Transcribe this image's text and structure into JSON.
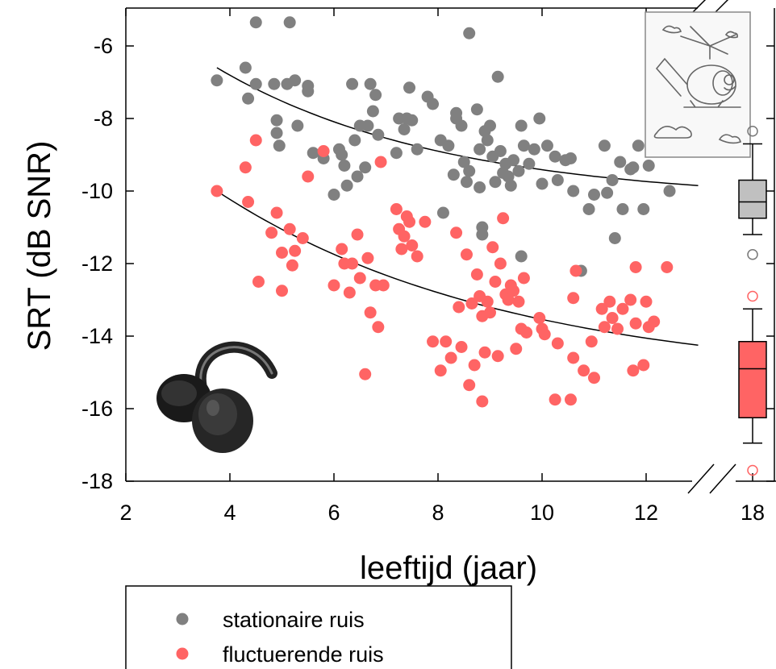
{
  "colors": {
    "stationary": "#808080",
    "fluctuating": "#ff6464",
    "box_stationary": "#c0c0c0",
    "box_fluctuating": "#ff6464"
  },
  "icons": [
    "helicopter-drawing-icon",
    "earmuffs-headphones-icon"
  ],
  "chart_data": {
    "type": "scatter",
    "title": "",
    "xlabel": "leeftijd (jaar)",
    "ylabel": "SRT (dB SNR)",
    "xlim": [
      2,
      13
    ],
    "ylim": [
      -18,
      -5
    ],
    "x_ticks": [
      "2",
      "4",
      "6",
      "8",
      "10",
      "12"
    ],
    "x_break_tick": "18",
    "y_ticks": [
      "-6",
      "-8",
      "-10",
      "-12",
      "-14",
      "-16",
      "-18"
    ],
    "legend": {
      "position": "bottom-left"
    },
    "series": [
      {
        "name": "stationaire ruis",
        "fit": {
          "x": [
            3.75,
            13.0
          ],
          "y": [
            -6.6,
            -9.85
          ],
          "decay": 0.23
        },
        "points": [
          [
            3.75,
            -6.95
          ],
          [
            4.3,
            -6.6
          ],
          [
            4.35,
            -7.45
          ],
          [
            4.5,
            -7.05
          ],
          [
            4.5,
            -5.35
          ],
          [
            4.85,
            -7.05
          ],
          [
            4.9,
            -8.05
          ],
          [
            4.9,
            -8.4
          ],
          [
            4.95,
            -8.75
          ],
          [
            5.1,
            -7.05
          ],
          [
            5.15,
            -5.35
          ],
          [
            5.25,
            -6.95
          ],
          [
            5.3,
            -8.2
          ],
          [
            5.5,
            -7.1
          ],
          [
            5.5,
            -7.25
          ],
          [
            5.6,
            -8.95
          ],
          [
            5.8,
            -9.1
          ],
          [
            6.0,
            -10.1
          ],
          [
            6.1,
            -8.85
          ],
          [
            6.15,
            -9.0
          ],
          [
            6.2,
            -9.3
          ],
          [
            6.25,
            -9.85
          ],
          [
            6.35,
            -7.05
          ],
          [
            6.4,
            -8.6
          ],
          [
            6.45,
            -9.6
          ],
          [
            6.5,
            -8.2
          ],
          [
            6.6,
            -9.35
          ],
          [
            6.65,
            -8.2
          ],
          [
            6.7,
            -7.05
          ],
          [
            6.75,
            -7.8
          ],
          [
            6.8,
            -7.35
          ],
          [
            6.85,
            -8.45
          ],
          [
            7.2,
            -8.95
          ],
          [
            7.25,
            -8.0
          ],
          [
            7.35,
            -8.3
          ],
          [
            7.4,
            -8.0
          ],
          [
            7.45,
            -7.15
          ],
          [
            7.5,
            -8.05
          ],
          [
            7.6,
            -8.85
          ],
          [
            7.8,
            -7.4
          ],
          [
            7.9,
            -7.6
          ],
          [
            8.05,
            -8.6
          ],
          [
            8.1,
            -10.6
          ],
          [
            8.2,
            -8.75
          ],
          [
            8.3,
            -9.55
          ],
          [
            8.35,
            -7.85
          ],
          [
            8.35,
            -8.0
          ],
          [
            8.45,
            -8.2
          ],
          [
            8.5,
            -9.2
          ],
          [
            8.55,
            -9.75
          ],
          [
            8.6,
            -5.65
          ],
          [
            8.6,
            -9.45
          ],
          [
            8.75,
            -7.75
          ],
          [
            8.8,
            -8.85
          ],
          [
            8.8,
            -9.9
          ],
          [
            8.85,
            -11.0
          ],
          [
            8.85,
            -11.2
          ],
          [
            8.9,
            -8.35
          ],
          [
            8.95,
            -8.6
          ],
          [
            9.0,
            -8.2
          ],
          [
            9.05,
            -9.05
          ],
          [
            9.1,
            -9.75
          ],
          [
            9.15,
            -6.85
          ],
          [
            9.2,
            -8.9
          ],
          [
            9.25,
            -9.5
          ],
          [
            9.3,
            -9.25
          ],
          [
            9.35,
            -9.6
          ],
          [
            9.4,
            -9.85
          ],
          [
            9.45,
            -9.15
          ],
          [
            9.55,
            -9.45
          ],
          [
            9.6,
            -8.2
          ],
          [
            9.6,
            -11.8
          ],
          [
            9.65,
            -8.75
          ],
          [
            9.75,
            -9.25
          ],
          [
            9.85,
            -8.85
          ],
          [
            9.95,
            -8.0
          ],
          [
            10.0,
            -9.8
          ],
          [
            10.1,
            -8.75
          ],
          [
            10.25,
            -9.05
          ],
          [
            10.3,
            -9.7
          ],
          [
            10.45,
            -9.15
          ],
          [
            10.55,
            -9.1
          ],
          [
            10.6,
            -10.0
          ],
          [
            10.75,
            -12.2
          ],
          [
            10.9,
            -10.5
          ],
          [
            11.0,
            -10.1
          ],
          [
            11.2,
            -8.75
          ],
          [
            11.25,
            -10.05
          ],
          [
            11.35,
            -9.7
          ],
          [
            11.4,
            -11.3
          ],
          [
            11.5,
            -9.2
          ],
          [
            11.55,
            -10.5
          ],
          [
            11.7,
            -9.4
          ],
          [
            11.75,
            -9.35
          ],
          [
            11.85,
            -8.75
          ],
          [
            11.95,
            -10.5
          ],
          [
            12.05,
            -9.3
          ],
          [
            12.1,
            -8.7
          ],
          [
            12.45,
            -10.0
          ]
        ],
        "box": {
          "whisker_low": -11.2,
          "q1": -10.75,
          "median": -10.3,
          "q3": -9.7,
          "whisker_high": -8.7,
          "outliers": [
            -8.35,
            -11.75
          ]
        }
      },
      {
        "name": "fluctuerende ruis",
        "fit": {
          "x": [
            3.75,
            13.0
          ],
          "y": [
            -10.0,
            -14.25
          ],
          "decay": 0.18
        },
        "points": [
          [
            3.75,
            -10.0
          ],
          [
            4.3,
            -9.35
          ],
          [
            4.35,
            -10.3
          ],
          [
            4.5,
            -8.6
          ],
          [
            4.55,
            -12.5
          ],
          [
            4.8,
            -11.15
          ],
          [
            4.9,
            -10.6
          ],
          [
            5.0,
            -11.7
          ],
          [
            5.0,
            -12.75
          ],
          [
            5.15,
            -11.05
          ],
          [
            5.2,
            -12.05
          ],
          [
            5.25,
            -11.65
          ],
          [
            5.4,
            -11.3
          ],
          [
            5.5,
            -9.6
          ],
          [
            5.8,
            -8.9
          ],
          [
            6.0,
            -12.6
          ],
          [
            6.15,
            -11.6
          ],
          [
            6.2,
            -12.0
          ],
          [
            6.3,
            -12.8
          ],
          [
            6.35,
            -12.0
          ],
          [
            6.45,
            -11.2
          ],
          [
            6.5,
            -12.4
          ],
          [
            6.6,
            -15.05
          ],
          [
            6.65,
            -11.85
          ],
          [
            6.7,
            -13.35
          ],
          [
            6.8,
            -12.6
          ],
          [
            6.85,
            -13.75
          ],
          [
            6.9,
            -9.2
          ],
          [
            6.95,
            -12.6
          ],
          [
            7.2,
            -10.5
          ],
          [
            7.25,
            -11.05
          ],
          [
            7.3,
            -11.6
          ],
          [
            7.35,
            -11.25
          ],
          [
            7.4,
            -10.7
          ],
          [
            7.45,
            -10.85
          ],
          [
            7.5,
            -11.5
          ],
          [
            7.6,
            -11.8
          ],
          [
            7.75,
            -10.85
          ],
          [
            7.9,
            -14.15
          ],
          [
            8.05,
            -14.95
          ],
          [
            8.15,
            -14.15
          ],
          [
            8.25,
            -14.6
          ],
          [
            8.35,
            -11.15
          ],
          [
            8.4,
            -13.2
          ],
          [
            8.45,
            -14.3
          ],
          [
            8.55,
            -11.75
          ],
          [
            8.6,
            -15.35
          ],
          [
            8.65,
            -13.1
          ],
          [
            8.7,
            -14.8
          ],
          [
            8.75,
            -12.3
          ],
          [
            8.8,
            -12.9
          ],
          [
            8.85,
            -15.8
          ],
          [
            8.85,
            -13.45
          ],
          [
            8.9,
            -14.45
          ],
          [
            8.95,
            -13.05
          ],
          [
            9.0,
            -13.35
          ],
          [
            9.05,
            -11.55
          ],
          [
            9.1,
            -12.5
          ],
          [
            9.15,
            -14.55
          ],
          [
            9.2,
            -12.0
          ],
          [
            9.25,
            -10.75
          ],
          [
            9.3,
            -12.85
          ],
          [
            9.35,
            -13.0
          ],
          [
            9.4,
            -12.6
          ],
          [
            9.45,
            -12.75
          ],
          [
            9.5,
            -14.35
          ],
          [
            9.55,
            -13.05
          ],
          [
            9.6,
            -13.8
          ],
          [
            9.65,
            -12.4
          ],
          [
            9.7,
            -13.9
          ],
          [
            9.95,
            -13.5
          ],
          [
            10.0,
            -13.8
          ],
          [
            10.05,
            -13.95
          ],
          [
            10.25,
            -15.75
          ],
          [
            10.3,
            -14.2
          ],
          [
            10.55,
            -15.75
          ],
          [
            10.6,
            -14.6
          ],
          [
            10.6,
            -12.95
          ],
          [
            10.65,
            -12.2
          ],
          [
            10.8,
            -14.95
          ],
          [
            10.95,
            -14.15
          ],
          [
            11.0,
            -15.15
          ],
          [
            11.15,
            -13.25
          ],
          [
            11.2,
            -13.75
          ],
          [
            11.3,
            -13.05
          ],
          [
            11.35,
            -13.5
          ],
          [
            11.45,
            -13.8
          ],
          [
            11.55,
            -13.25
          ],
          [
            11.7,
            -13.0
          ],
          [
            11.75,
            -14.95
          ],
          [
            11.8,
            -12.1
          ],
          [
            11.8,
            -13.65
          ],
          [
            11.95,
            -14.8
          ],
          [
            12.0,
            -13.05
          ],
          [
            12.05,
            -13.75
          ],
          [
            12.15,
            -13.6
          ],
          [
            12.4,
            -12.1
          ]
        ],
        "box": {
          "whisker_low": -16.95,
          "q1": -16.25,
          "median": -14.9,
          "q3": -14.15,
          "whisker_high": -13.25,
          "outliers": [
            -12.9,
            -17.7
          ]
        }
      }
    ]
  }
}
